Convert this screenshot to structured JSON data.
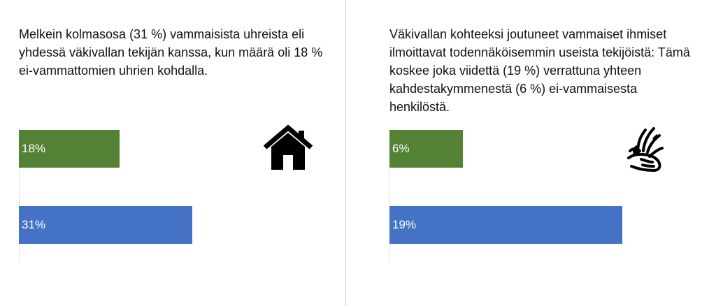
{
  "chart_data": [
    {
      "type": "bar",
      "orientation": "horizontal",
      "caption": "Melkein kolmasosa (31 %) vammaisista uhreista eli yhdessä väkivallan tekijän kanssa, kun määrä oli 18 % ei-vammattomien uhrien kohdalla.",
      "icon": "house-icon",
      "bars": [
        {
          "value": 18,
          "label": "18%",
          "color": "#548235"
        },
        {
          "value": 31,
          "label": "31%",
          "color": "#4472C4"
        }
      ],
      "xlim": [
        0,
        39.5
      ]
    },
    {
      "type": "bar",
      "orientation": "horizontal",
      "caption": "Väkivallan kohteeksi joutuneet vammaiset ihmiset ilmoittavat todennäköisemmin useista tekijöistä: Tämä koskee joka viidettä (19 %) verrattuna yhteen kahdestakymmenestä (6 %) ei-vammaisesta henkilöstä.",
      "icon": "sign-language-hands-icon",
      "bars": [
        {
          "value": 6,
          "label": "6%",
          "color": "#548235"
        },
        {
          "value": 19,
          "label": "19%",
          "color": "#4472C4"
        }
      ],
      "xlim": [
        0,
        19.6
      ]
    }
  ]
}
